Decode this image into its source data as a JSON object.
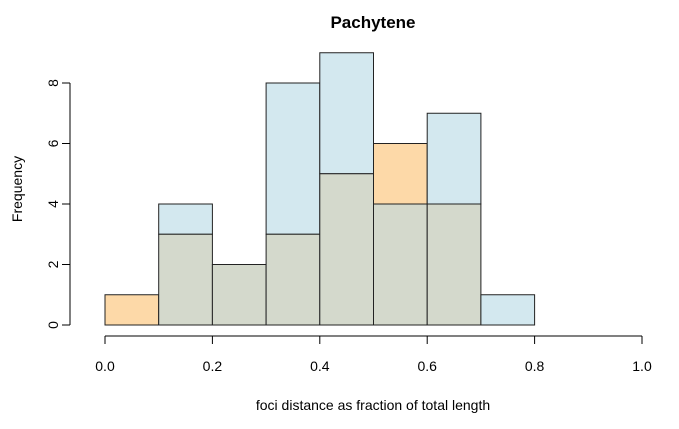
{
  "chart_data": {
    "type": "bar",
    "subtype": "overlaid-histogram",
    "title": "Pachytene",
    "xlabel": "foci distance as fraction of total length",
    "ylabel": "Frequency",
    "xlim": [
      0,
      1.0
    ],
    "ylim": [
      0,
      9
    ],
    "x_ticks": [
      "0.0",
      "0.2",
      "0.4",
      "0.6",
      "0.8",
      "1.0"
    ],
    "y_ticks": [
      "0",
      "2",
      "4",
      "6",
      "8"
    ],
    "grid": false,
    "legend": null,
    "bins": [
      [
        0.0,
        0.1
      ],
      [
        0.1,
        0.2
      ],
      [
        0.2,
        0.3
      ],
      [
        0.3,
        0.4
      ],
      [
        0.4,
        0.5
      ],
      [
        0.5,
        0.6
      ],
      [
        0.6,
        0.7
      ],
      [
        0.7,
        0.8
      ]
    ],
    "series": [
      {
        "color": "#d3e8ef",
        "values": [
          0,
          4,
          2,
          8,
          9,
          4,
          7,
          1
        ]
      },
      {
        "color": "#fdd9a8",
        "values": [
          1,
          3,
          2,
          3,
          5,
          6,
          4,
          0
        ]
      }
    ],
    "overlap_color": "#d4d9cc"
  }
}
